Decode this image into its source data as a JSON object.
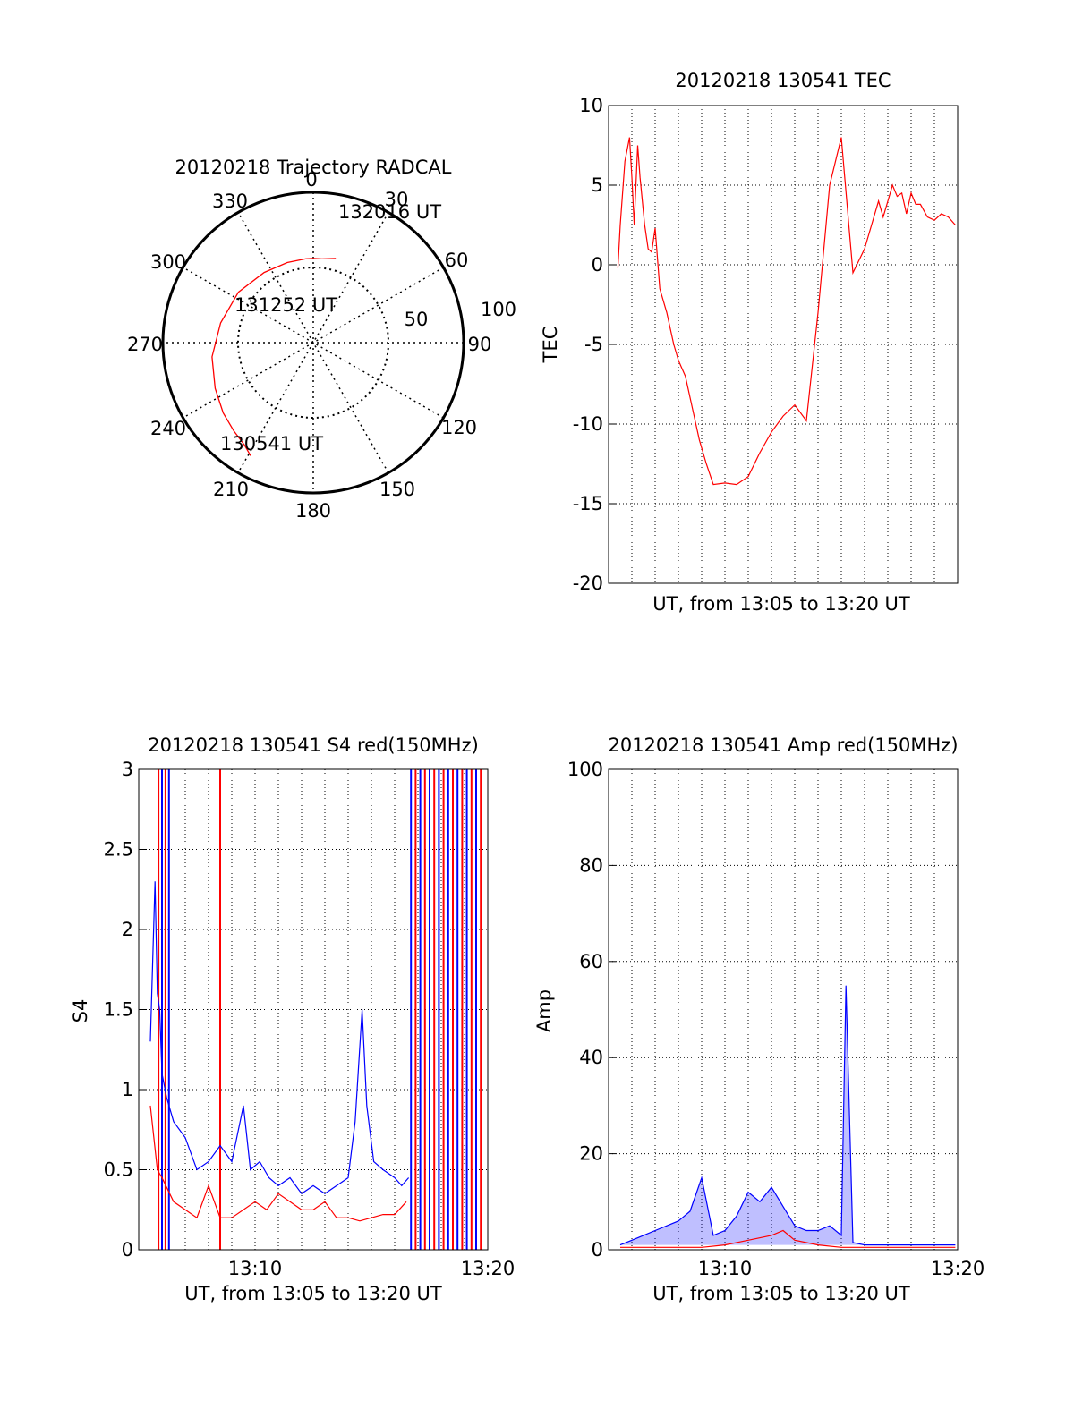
{
  "chart_data": [
    {
      "type": "polar",
      "title": "20120218 Trajectory RADCAL",
      "azimuth_labels": [
        "0",
        "30",
        "60",
        "90",
        "120",
        "150",
        "180",
        "210",
        "240",
        "270",
        "300",
        "330"
      ],
      "radial_labels": [
        "50",
        "100"
      ],
      "rlim": [
        0,
        100
      ],
      "grid": true,
      "series": [
        {
          "color": "#ff0000",
          "azimuth": [
            209,
            214,
            222,
            232,
            245,
            262,
            282,
            304,
            325,
            342,
            355,
            360,
            366,
            375
          ],
          "elevation": [
            86,
            82,
            79,
            76,
            72,
            68,
            63,
            60,
            57,
            56,
            56,
            56,
            56,
            58
          ]
        }
      ],
      "annotations": [
        "132016 UT",
        "131252 UT",
        "130541 UT"
      ]
    },
    {
      "type": "line",
      "title": "20120218 130541 TEC",
      "xlabel": "UT, from 13:05 to 13:20 UT",
      "ylabel": "TEC",
      "ylim": [
        -20,
        10
      ],
      "yticks": [
        "10",
        "5",
        "0",
        "-5",
        "-10",
        "-15",
        "-20"
      ],
      "grid": true,
      "series": [
        {
          "color": "#ff0000",
          "x": [
            0.4,
            0.5,
            0.7,
            0.9,
            1.0,
            1.1,
            1.25,
            1.35,
            1.45,
            1.55,
            1.7,
            1.85,
            2.0,
            2.2,
            2.5,
            2.8,
            3.0,
            3.3,
            3.6,
            3.9,
            4.2,
            4.5,
            5.0,
            5.5,
            6.0,
            6.5,
            7.0,
            7.5,
            8.0,
            8.5,
            9.0,
            9.5,
            10.0,
            10.5,
            11.0,
            11.3,
            11.6,
            11.8,
            12.0,
            12.2,
            12.4,
            12.6,
            12.8,
            13.0,
            13.2,
            13.4,
            13.7,
            14.0,
            14.3,
            14.6,
            14.9
          ],
          "y": [
            -0.2,
            2.5,
            6.5,
            8.0,
            5.5,
            2.5,
            7.5,
            5.5,
            4.0,
            2.5,
            1.0,
            0.8,
            2.3,
            -1.5,
            -3.0,
            -5.0,
            -6.0,
            -7.0,
            -9.0,
            -11.0,
            -12.5,
            -13.8,
            -13.7,
            -13.8,
            -13.3,
            -11.8,
            -10.5,
            -9.5,
            -8.8,
            -9.8,
            -3.0,
            5.0,
            8.0,
            -0.5,
            1.0,
            2.5,
            4.0,
            3.0,
            4.0,
            5.0,
            4.3,
            4.5,
            3.2,
            4.5,
            3.8,
            3.8,
            3.0,
            2.8,
            3.2,
            3.0,
            2.5
          ]
        }
      ]
    },
    {
      "type": "line",
      "title": "20120218 130541 S4 red(150MHz)",
      "xlabel": "UT, from 13:05 to 13:20 UT",
      "ylabel": "S4",
      "xticks": [
        "13:10",
        "13:20"
      ],
      "ylim": [
        0,
        3
      ],
      "yticks": [
        "3",
        "2.5",
        "2",
        "1.5",
        "1",
        "0.5",
        "0"
      ],
      "grid": true,
      "series": [
        {
          "color": "#0000ff",
          "x": [
            0.5,
            0.6,
            0.7,
            0.8,
            0.9,
            1.0,
            1.2,
            1.5,
            2.0,
            2.5,
            3.0,
            3.5,
            4.0,
            4.5,
            4.8,
            5.2,
            5.6,
            6.0,
            6.5,
            7.0,
            7.5,
            8.0,
            8.5,
            9.0,
            9.3,
            9.6,
            9.8,
            10.1,
            10.5,
            11.0,
            11.3,
            11.6
          ],
          "y": [
            1.3,
            1.8,
            2.3,
            1.6,
            1.5,
            1.1,
            0.95,
            0.8,
            0.7,
            0.5,
            0.55,
            0.65,
            0.55,
            0.9,
            0.5,
            0.55,
            0.45,
            0.4,
            0.45,
            0.35,
            0.4,
            0.35,
            0.4,
            0.45,
            0.8,
            1.5,
            0.9,
            0.55,
            0.5,
            0.45,
            0.4,
            0.45
          ]
        },
        {
          "color": "#ff0000",
          "x": [
            0.5,
            0.8,
            1.0,
            1.5,
            2.0,
            2.5,
            3.0,
            3.5,
            4.0,
            4.5,
            5.0,
            5.5,
            6.0,
            6.5,
            7.0,
            7.5,
            8.0,
            8.5,
            9.0,
            9.5,
            10.0,
            10.5,
            11.0,
            11.5
          ],
          "y": [
            0.9,
            0.5,
            0.45,
            0.3,
            0.25,
            0.2,
            0.4,
            0.2,
            0.2,
            0.25,
            0.3,
            0.25,
            0.35,
            0.3,
            0.25,
            0.25,
            0.3,
            0.2,
            0.2,
            0.18,
            0.2,
            0.22,
            0.22,
            0.3
          ]
        }
      ]
    },
    {
      "type": "line",
      "title": "20120218 130541 Amp red(150MHz)",
      "xlabel": "UT, from 13:05 to 13:20 UT",
      "ylabel": "Amp",
      "xticks": [
        "13:10",
        "13:20"
      ],
      "ylim": [
        0,
        100
      ],
      "yticks": [
        "100",
        "80",
        "60",
        "40",
        "20",
        "0"
      ],
      "grid": true,
      "series": [
        {
          "color": "#0000ff",
          "x": [
            0.5,
            1.0,
            1.5,
            2.0,
            2.5,
            3.0,
            3.5,
            4.0,
            4.5,
            5.0,
            5.5,
            6.0,
            6.5,
            7.0,
            7.5,
            8.0,
            8.5,
            9.0,
            9.5,
            10.0,
            10.2,
            10.5,
            11.0,
            12.0,
            13.0,
            14.0,
            14.9
          ],
          "y": [
            1,
            2,
            3,
            4,
            5,
            6,
            8,
            15,
            3,
            4,
            7,
            12,
            10,
            13,
            9,
            5,
            4,
            4,
            5,
            3,
            55,
            1.5,
            1,
            1,
            1,
            1,
            1
          ]
        },
        {
          "color": "#ff0000",
          "x": [
            0.5,
            2.0,
            4.0,
            5.0,
            6.0,
            7.0,
            7.5,
            8.0,
            9.0,
            10.0,
            11.0,
            14.9
          ],
          "y": [
            0.5,
            0.5,
            0.5,
            1.0,
            2.0,
            3.0,
            4.0,
            2.0,
            1.0,
            0.5,
            0.5,
            0.5
          ]
        }
      ]
    }
  ]
}
